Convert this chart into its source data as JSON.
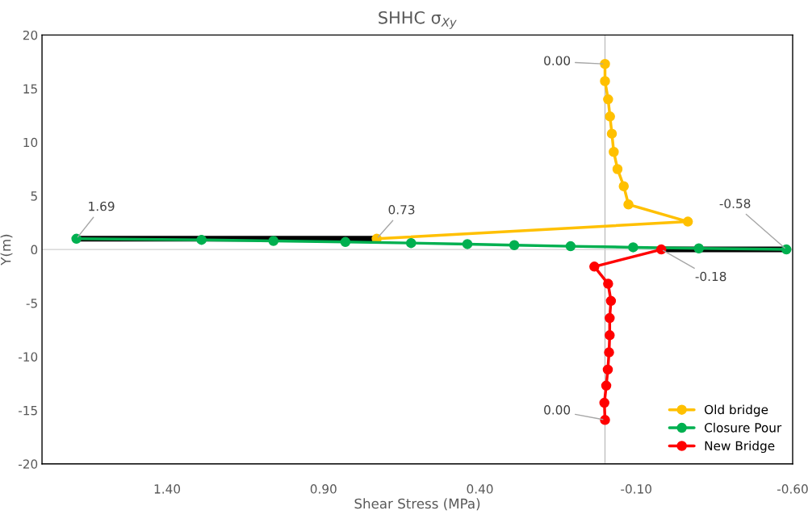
{
  "chart_data": {
    "type": "line",
    "title": "SHHC σ$_{Xy}$",
    "xlabel": "Shear Stress (MPa)",
    "ylabel": "Y(m)",
    "xlim": [
      1.8,
      -0.6
    ],
    "xticks": [
      {
        "value": 1.4,
        "label": "1.40"
      },
      {
        "value": 0.9,
        "label": "0.90"
      },
      {
        "value": 0.4,
        "label": "0.40"
      },
      {
        "value": -0.1,
        "label": "-0.10"
      },
      {
        "value": -0.6,
        "label": "-0.60"
      }
    ],
    "ylim": [
      -20,
      20
    ],
    "yticks": [
      -20,
      -15,
      -10,
      -5,
      0,
      5,
      10,
      15,
      20
    ],
    "grid": false,
    "legend": "bottom right",
    "marker": "circle",
    "line_style": "solid",
    "ref_lines": [
      {
        "axis": "x",
        "value": 0,
        "color": "#bfbfbf"
      },
      {
        "axis": "y",
        "value": 0,
        "color": "#d0d0d0"
      }
    ],
    "series": [
      {
        "color": "#000000",
        "marker": "none",
        "x": [
          1.69,
          0.73
        ],
        "values": [
          1.0,
          1.0
        ]
      },
      {
        "color": "#000000",
        "marker": "none",
        "x": [
          -0.18,
          -0.58
        ],
        "values": [
          0.0,
          0.0
        ]
      },
      {
        "name": "Old bridge",
        "color": "#ffc000",
        "x": [
          0.0,
          0.0,
          -0.01,
          -0.016,
          -0.022,
          -0.028,
          -0.04,
          -0.06,
          -0.075,
          -0.265,
          0.73
        ],
        "values": [
          17.3,
          15.7,
          14.0,
          12.4,
          10.8,
          9.1,
          7.5,
          5.9,
          4.2,
          2.6,
          1.0
        ]
      },
      {
        "name": "Closure Pour",
        "color": "#00b050",
        "x": [
          1.69,
          1.29,
          1.06,
          0.83,
          0.62,
          0.44,
          0.29,
          0.11,
          -0.09,
          -0.3,
          -0.58
        ],
        "values": [
          1.0,
          0.9,
          0.8,
          0.7,
          0.6,
          0.5,
          0.4,
          0.3,
          0.2,
          0.1,
          0.0
        ]
      },
      {
        "name": "New Bridge",
        "color": "#ff0000",
        "x": [
          -0.18,
          0.034,
          -0.01,
          -0.019,
          -0.015,
          -0.015,
          -0.013,
          -0.009,
          -0.004,
          0.002,
          0.0
        ],
        "values": [
          0.0,
          -1.6,
          -3.2,
          -4.8,
          -6.4,
          -8.0,
          -9.6,
          -11.2,
          -12.7,
          -14.3,
          -15.9
        ]
      }
    ],
    "annotations": [
      {
        "text": "0.00",
        "x": 0.0,
        "y": 17.3
      },
      {
        "text": "1.69",
        "x": 1.69,
        "y": 1.0
      },
      {
        "text": "0.73",
        "x": 0.73,
        "y": 1.0
      },
      {
        "text": "-0.58",
        "x": -0.58,
        "y": 0.0
      },
      {
        "text": "-0.18",
        "x": -0.18,
        "y": 0.0
      },
      {
        "text": "0.00",
        "x": 0.0,
        "y": -15.9
      }
    ]
  }
}
